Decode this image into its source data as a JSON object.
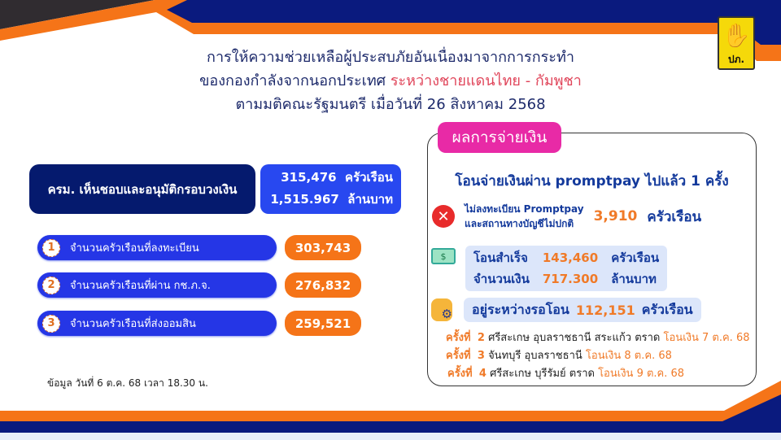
{
  "header": {
    "title_line1": "การให้ความช่วยเหลือผู้ประสบภัยอันเนื่องมาจากการกระทำ",
    "title_line2_a": "ของกองกำลังจากนอกประเทศ",
    "title_line2_b": "ระหว่างชายแดนไทย - กัมพูชา",
    "title_line3": "ตามมติคณะรัฐมนตรี เมื่อวันที่ 26 สิงหาคม 2568",
    "logo_text": "ปภ.",
    "logo_icon": "hand-icon"
  },
  "summary": {
    "cabinet_label": "ครม. เห็นชอบและอนุมัติกรอบวงเงิน",
    "households": "315,476",
    "households_unit": "ครัวเรือน",
    "amount": "1,515.967",
    "amount_unit": "ล้านบาท"
  },
  "steps": [
    {
      "num": "1",
      "label": "จำนวนครัวเรือนที่ลงทะเบียน",
      "value": "303,743"
    },
    {
      "num": "2",
      "label": "จำนวนครัวเรือนที่ผ่าน กช.ภ.จ.",
      "value": "276,832"
    },
    {
      "num": "3",
      "label": "จำนวนครัวเรือนที่ส่งออมสิน",
      "value": "259,521"
    }
  ],
  "note": "ข้อมูล วันที่ 6 ต.ค. 68 เวลา 18.30 น.",
  "payment": {
    "tag": "ผลการจ่ายเงิน",
    "heading": "โอนจ่ายเงินผ่าน promptpay ไปแล้ว 1 ครั้ง",
    "fail_line1": "ไม่ลงทะเบียน Promptpay",
    "fail_line2": "และสถานทางบัญชีไม่ปกติ",
    "fail_value": "3,910",
    "fail_unit": "ครัวเรือน",
    "ok_label": "โอนสำเร็จ",
    "ok_value": "143,460",
    "ok_unit": "ครัวเรือน",
    "amount_label": "จำนวนเงิน",
    "amount_value": "717.300",
    "amount_unit": "ล้านบาท",
    "pending_label": "อยู่ระหว่างรอโอน",
    "pending_value": "112,151",
    "pending_unit": "ครัวเรือน",
    "rounds": [
      {
        "prefix": "ครั้งที่",
        "num": "2",
        "provinces": "ศรีสะเกษ อุบลราชธานี สระแก้ว ตราด",
        "date": "โอนเงิน 7 ต.ค. 68"
      },
      {
        "prefix": "ครั้งที่",
        "num": "3",
        "provinces": "จันทบุรี อุบลราชธานี",
        "date": "โอนเงิน 8 ต.ค. 68"
      },
      {
        "prefix": "ครั้งที่",
        "num": "4",
        "provinces": "ศรีสะเกษ บุรีรัมย์ ตราด",
        "date": "โอนเงิน 9 ต.ค. 68"
      }
    ]
  },
  "colors": {
    "navy": "#0a1a7e",
    "orange": "#f57418",
    "dark": "#302c30",
    "pink": "#e82aa6",
    "blue": "#2536e6"
  }
}
